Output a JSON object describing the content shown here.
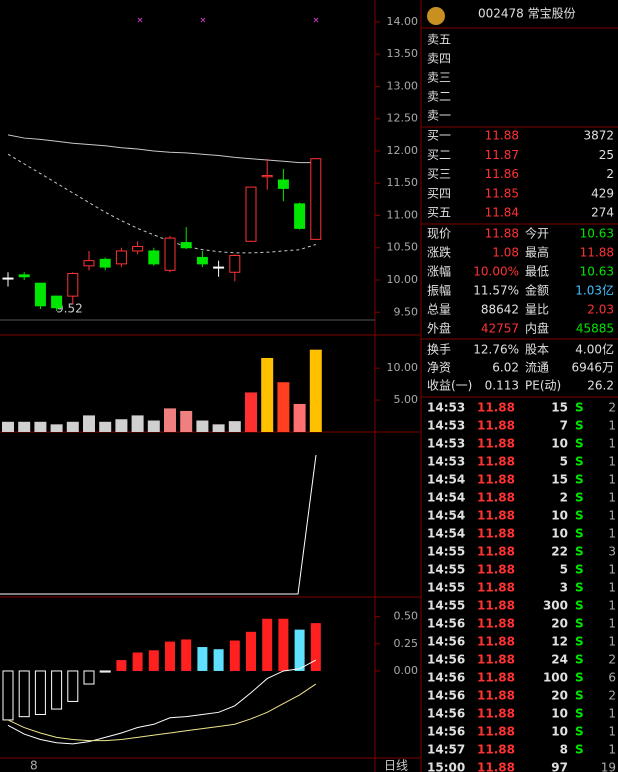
{
  "chart_data": {
    "type": "candlestick",
    "open": [
      10.03,
      10.08,
      9.95,
      9.75,
      9.75,
      10.22,
      10.32,
      10.25,
      10.45,
      10.45,
      10.15,
      10.58,
      10.35,
      10.2,
      10.12,
      10.6,
      11.6,
      11.55,
      11.18,
      10.63
    ],
    "high": [
      10.12,
      10.12,
      9.95,
      9.75,
      10.12,
      10.45,
      10.35,
      10.5,
      10.6,
      10.5,
      10.68,
      10.82,
      10.45,
      10.3,
      10.4,
      11.44,
      11.88,
      11.72,
      11.2,
      11.88
    ],
    "low": [
      9.9,
      10.0,
      9.55,
      9.52,
      9.62,
      10.15,
      10.15,
      10.2,
      10.4,
      10.22,
      10.12,
      10.48,
      10.2,
      10.05,
      9.98,
      10.6,
      11.4,
      11.22,
      10.78,
      10.63
    ],
    "close": [
      10.03,
      10.05,
      9.6,
      9.57,
      10.1,
      10.3,
      10.2,
      10.45,
      10.52,
      10.25,
      10.65,
      10.5,
      10.25,
      10.2,
      10.38,
      11.44,
      11.62,
      11.42,
      10.8,
      11.88
    ],
    "ma": [
      {
        "color": "#c8c8c8",
        "dash": false,
        "values": [
          12.25,
          12.2,
          12.18,
          12.15,
          12.12,
          12.1,
          12.08,
          12.05,
          12.03,
          12.0,
          11.98,
          11.97,
          11.95,
          11.93,
          11.9,
          11.88,
          11.86,
          11.84,
          11.82,
          11.82
        ]
      },
      {
        "color": "#c8c8c8",
        "dash": true,
        "values": [
          11.95,
          11.8,
          11.65,
          11.5,
          11.35,
          11.2,
          11.05,
          10.92,
          10.8,
          10.7,
          10.6,
          10.52,
          10.47,
          10.44,
          10.42,
          10.42,
          10.43,
          10.45,
          10.47,
          10.55
        ]
      }
    ],
    "ylim": [
      9.38,
      14.34
    ],
    "yticks": [
      {
        "value": 14,
        "label": "14.00"
      },
      {
        "value": 13.5,
        "label": "13.50"
      },
      {
        "value": 13,
        "label": "13.00"
      },
      {
        "value": 12.5,
        "label": "12.50"
      },
      {
        "value": 12,
        "label": "12.00"
      },
      {
        "value": 11.5,
        "label": "11.50"
      },
      {
        "value": 11,
        "label": "11.00"
      },
      {
        "value": 10.5,
        "label": "10.50"
      },
      {
        "value": 10,
        "label": "10.00"
      },
      {
        "value": 9.5,
        "label": "9.50"
      }
    ],
    "low_label": "9.52",
    "volume": {
      "values": [
        1.6,
        1.6,
        1.6,
        1.2,
        1.6,
        2.6,
        1.6,
        2.0,
        2.6,
        1.8,
        3.7,
        3.3,
        1.8,
        1.2,
        1.7,
        6.2,
        11.6,
        7.8,
        4.4,
        12.9
      ],
      "colors": [
        "#d0d0d0",
        "#d0d0d0",
        "#d0d0d0",
        "#d0d0d0",
        "#d0d0d0",
        "#d0d0d0",
        "#d0d0d0",
        "#d0d0d0",
        "#d0d0d0",
        "#d0d0d0",
        "#f08080",
        "#f08080",
        "#d0d0d0",
        "#d0d0d0",
        "#d0d0d0",
        "#ff3030",
        "#ffc000",
        "#ff4020",
        "#ff7070",
        "#ffc000"
      ],
      "ylim": [
        0,
        15.2
      ],
      "yticks": [
        {
          "value": 10,
          "label": "10.00"
        },
        {
          "value": 5,
          "label": "5.00"
        }
      ]
    },
    "macd": {
      "values": [
        -0.45,
        -0.42,
        -0.4,
        -0.35,
        -0.28,
        -0.12,
        -0.01,
        0.1,
        0.17,
        0.19,
        0.27,
        0.29,
        0.22,
        0.2,
        0.28,
        0.36,
        0.48,
        0.48,
        0.38,
        0.44
      ],
      "dif": {
        "color": "#ffffff",
        "values": [
          -0.5,
          -0.58,
          -0.63,
          -0.66,
          -0.67,
          -0.65,
          -0.61,
          -0.57,
          -0.52,
          -0.49,
          -0.43,
          -0.42,
          -0.4,
          -0.38,
          -0.32,
          -0.2,
          -0.07,
          0,
          0.02,
          0.1
        ]
      },
      "dea": {
        "color": "#f0e68c",
        "values": [
          -0.45,
          -0.52,
          -0.57,
          -0.61,
          -0.63,
          -0.64,
          -0.64,
          -0.63,
          -0.61,
          -0.59,
          -0.57,
          -0.55,
          -0.53,
          -0.51,
          -0.49,
          -0.44,
          -0.38,
          -0.3,
          -0.22,
          -0.12
        ]
      },
      "ylim": [
        -0.8,
        0.68
      ],
      "yticks": [
        {
          "value": 0.5,
          "label": "0.50"
        },
        {
          "value": 0.25,
          "label": "0.25"
        },
        {
          "value": 0,
          "label": "0.00"
        }
      ]
    },
    "x_label": "8",
    "period": "日线"
  },
  "panel": {
    "title": "002478 常宝股份",
    "sell": [
      "卖五",
      "卖四",
      "卖三",
      "卖二",
      "卖一"
    ],
    "buy": [
      {
        "label": "买一",
        "price": "11.88",
        "vol": "3872"
      },
      {
        "label": "买二",
        "price": "11.87",
        "vol": "25"
      },
      {
        "label": "买三",
        "price": "11.86",
        "vol": "2"
      },
      {
        "label": "买四",
        "price": "11.85",
        "vol": "429"
      },
      {
        "label": "买五",
        "price": "11.84",
        "vol": "274"
      }
    ],
    "stats": [
      [
        {
          "label": "现价",
          "value": "11.88",
          "color": "#ff3232"
        },
        {
          "label": "今开",
          "value": "10.63",
          "color": "#00e600"
        }
      ],
      [
        {
          "label": "涨跌",
          "value": "1.08",
          "color": "#ff3232"
        },
        {
          "label": "最高",
          "value": "11.88",
          "color": "#ff3232"
        }
      ],
      [
        {
          "label": "涨幅",
          "value": "10.00%",
          "color": "#ff3232"
        },
        {
          "label": "最低",
          "value": "10.63",
          "color": "#00e600"
        }
      ],
      [
        {
          "label": "振幅",
          "value": "11.57%",
          "color": "#e0e0e0"
        },
        {
          "label": "金额",
          "value": "1.03亿",
          "color": "#40c0ff"
        }
      ],
      [
        {
          "label": "总量",
          "value": "88642",
          "color": "#e0e0e0"
        },
        {
          "label": "量比",
          "value": "2.03",
          "color": "#ff3232"
        }
      ],
      [
        {
          "label": "外盘",
          "value": "42757",
          "color": "#ff3232"
        },
        {
          "label": "内盘",
          "value": "45885",
          "color": "#00e600"
        }
      ]
    ],
    "info": [
      [
        {
          "label": "换手",
          "value": "12.76%"
        },
        {
          "label": "股本",
          "value": "4.00亿"
        }
      ],
      [
        {
          "label": "净资",
          "value": "6.02"
        },
        {
          "label": "流通",
          "value": "6946万"
        }
      ],
      [
        {
          "label": "收益(一)",
          "value": "0.113"
        },
        {
          "label": "PE(动)",
          "value": "26.2"
        }
      ]
    ],
    "trades": [
      {
        "time": "14:53",
        "price": "11.88",
        "vol": "15",
        "side": "S",
        "n": "2"
      },
      {
        "time": "14:53",
        "price": "11.88",
        "vol": "7",
        "side": "S",
        "n": "1"
      },
      {
        "time": "14:53",
        "price": "11.88",
        "vol": "10",
        "side": "S",
        "n": "1"
      },
      {
        "time": "14:53",
        "price": "11.88",
        "vol": "5",
        "side": "S",
        "n": "1"
      },
      {
        "time": "14:54",
        "price": "11.88",
        "vol": "15",
        "side": "S",
        "n": "1"
      },
      {
        "time": "14:54",
        "price": "11.88",
        "vol": "2",
        "side": "S",
        "n": "1"
      },
      {
        "time": "14:54",
        "price": "11.88",
        "vol": "10",
        "side": "S",
        "n": "1"
      },
      {
        "time": "14:54",
        "price": "11.88",
        "vol": "10",
        "side": "S",
        "n": "1"
      },
      {
        "time": "14:55",
        "price": "11.88",
        "vol": "22",
        "side": "S",
        "n": "3"
      },
      {
        "time": "14:55",
        "price": "11.88",
        "vol": "5",
        "side": "S",
        "n": "1"
      },
      {
        "time": "14:55",
        "price": "11.88",
        "vol": "3",
        "side": "S",
        "n": "1"
      },
      {
        "time": "14:55",
        "price": "11.88",
        "vol": "300",
        "side": "S",
        "n": "1"
      },
      {
        "time": "14:56",
        "price": "11.88",
        "vol": "20",
        "side": "S",
        "n": "1"
      },
      {
        "time": "14:56",
        "price": "11.88",
        "vol": "12",
        "side": "S",
        "n": "1"
      },
      {
        "time": "14:56",
        "price": "11.88",
        "vol": "24",
        "side": "S",
        "n": "2"
      },
      {
        "time": "14:56",
        "price": "11.88",
        "vol": "100",
        "side": "S",
        "n": "6"
      },
      {
        "time": "14:56",
        "price": "11.88",
        "vol": "20",
        "side": "S",
        "n": "2"
      },
      {
        "time": "14:56",
        "price": "11.88",
        "vol": "10",
        "side": "S",
        "n": "1"
      },
      {
        "time": "14:56",
        "price": "11.88",
        "vol": "10",
        "side": "S",
        "n": "1"
      },
      {
        "time": "14:57",
        "price": "11.88",
        "vol": "8",
        "side": "S",
        "n": "1"
      },
      {
        "time": "15:00",
        "price": "11.88",
        "vol": "97",
        "n": "19"
      }
    ]
  }
}
